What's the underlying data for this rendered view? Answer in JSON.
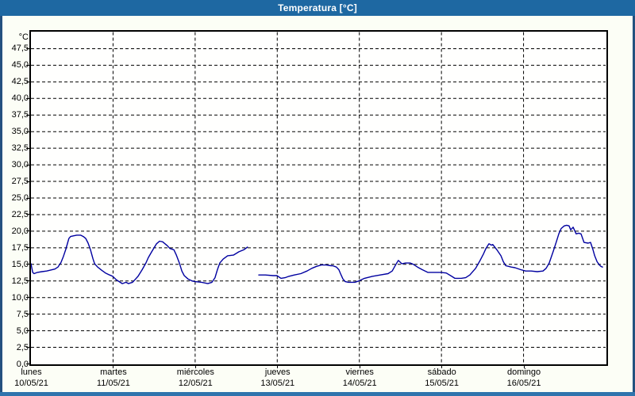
{
  "window": {
    "title": "Temperatura [°C]"
  },
  "colors": {
    "titlebar": "#1e68a2",
    "title_text": "#ffffff",
    "frame_side": "#24517f",
    "frame_bottom": "#2f74ad",
    "background": "#fcfef6",
    "plot_background": "#fffffe",
    "plot_border": "#000000",
    "gridline": "#000000",
    "axis_text": "#000000",
    "line": "#0000a0"
  },
  "chart_data": {
    "type": "line",
    "title": "Temperatura [°C]",
    "y_unit": "°C",
    "grid": "dashed",
    "legend": "none",
    "y_axis": {
      "min": 0,
      "max": 50,
      "step": 2.5,
      "tick_labels": [
        "0,0",
        "2,5",
        "5,0",
        "7,5",
        "10,0",
        "12,5",
        "15,0",
        "17,5",
        "20,0",
        "22,5",
        "25,0",
        "27,5",
        "30,0",
        "32,5",
        "35,0",
        "37,5",
        "40,0",
        "42,5",
        "45,0",
        "47,5"
      ]
    },
    "x_axis": {
      "total_hours": 168,
      "days": [
        {
          "name": "lunes",
          "date": "10/05/21"
        },
        {
          "name": "martes",
          "date": "11/05/21"
        },
        {
          "name": "miércoles",
          "date": "12/05/21"
        },
        {
          "name": "jueves",
          "date": "13/05/21"
        },
        {
          "name": "viernes",
          "date": "14/05/21"
        },
        {
          "name": "sábado",
          "date": "15/05/21"
        },
        {
          "name": "domingo",
          "date": "16/05/21"
        }
      ]
    },
    "series": [
      {
        "name": "Temperatura",
        "color": "#0000a0",
        "unit": "°C",
        "segments": [
          [
            [
              0,
              15.1
            ],
            [
              0.5,
              13.8
            ],
            [
              0.9,
              13.6
            ],
            [
              1.9,
              13.8
            ],
            [
              3.2,
              13.9
            ],
            [
              4.6,
              14.0
            ],
            [
              7.0,
              14.3
            ],
            [
              7.9,
              14.6
            ],
            [
              8.8,
              15.3
            ],
            [
              9.5,
              16.2
            ],
            [
              10.2,
              17.3
            ],
            [
              10.7,
              18.2
            ],
            [
              11.1,
              18.9
            ],
            [
              11.6,
              19.2
            ],
            [
              12.4,
              19.3
            ],
            [
              13.4,
              19.4
            ],
            [
              14.5,
              19.4
            ],
            [
              15.3,
              19.2
            ],
            [
              16.0,
              18.9
            ],
            [
              16.7,
              18.2
            ],
            [
              17.4,
              17.2
            ],
            [
              18.1,
              15.9
            ],
            [
              18.6,
              15.1
            ],
            [
              19.5,
              14.6
            ],
            [
              20.7,
              14.1
            ],
            [
              21.8,
              13.7
            ],
            [
              23.0,
              13.4
            ],
            [
              23.9,
              13.2
            ],
            [
              24.9,
              12.7
            ],
            [
              26.7,
              12.1
            ],
            [
              27.8,
              12.3
            ],
            [
              28.5,
              12.1
            ],
            [
              29.7,
              12.3
            ],
            [
              30.6,
              12.8
            ],
            [
              31.3,
              13.2
            ],
            [
              32.5,
              14.2
            ],
            [
              33.6,
              15.2
            ],
            [
              34.3,
              16.0
            ],
            [
              35.3,
              16.9
            ],
            [
              36.0,
              17.5
            ],
            [
              36.7,
              18.1
            ],
            [
              37.6,
              18.5
            ],
            [
              38.5,
              18.4
            ],
            [
              39.9,
              17.8
            ],
            [
              40.6,
              17.4
            ],
            [
              41.8,
              17.2
            ],
            [
              42.5,
              16.4
            ],
            [
              43.4,
              15.2
            ],
            [
              44.1,
              14.0
            ],
            [
              44.8,
              13.3
            ],
            [
              45.9,
              12.8
            ],
            [
              47.1,
              12.5
            ],
            [
              48.0,
              12.4
            ],
            [
              49.9,
              12.3
            ],
            [
              51.7,
              12.1
            ],
            [
              52.9,
              12.3
            ],
            [
              53.8,
              13.0
            ],
            [
              54.5,
              14.2
            ],
            [
              55.2,
              15.2
            ],
            [
              56.2,
              15.8
            ],
            [
              57.5,
              16.3
            ],
            [
              59.2,
              16.4
            ],
            [
              60.8,
              16.9
            ],
            [
              62.2,
              17.2
            ],
            [
              63.3,
              17.6
            ]
          ],
          [
            [
              66.6,
              13.4
            ],
            [
              68.5,
              13.4
            ],
            [
              70.8,
              13.3
            ],
            [
              71.9,
              13.3
            ],
            [
              73.1,
              12.9
            ],
            [
              74.3,
              13.0
            ],
            [
              75.4,
              13.2
            ],
            [
              77.0,
              13.4
            ],
            [
              78.9,
              13.6
            ],
            [
              80.7,
              14.0
            ],
            [
              82.1,
              14.4
            ],
            [
              83.5,
              14.7
            ],
            [
              84.9,
              14.9
            ],
            [
              86.3,
              14.9
            ],
            [
              87.7,
              14.8
            ],
            [
              88.2,
              14.8
            ],
            [
              89.3,
              14.6
            ],
            [
              90.0,
              14.2
            ],
            [
              90.5,
              13.6
            ],
            [
              91.2,
              12.8
            ],
            [
              91.9,
              12.4
            ],
            [
              92.8,
              12.3
            ],
            [
              94.7,
              12.3
            ],
            [
              95.8,
              12.5
            ],
            [
              97.5,
              12.9
            ],
            [
              99.8,
              13.2
            ],
            [
              102.1,
              13.4
            ],
            [
              104.4,
              13.6
            ],
            [
              105.6,
              14.0
            ],
            [
              106.7,
              15.0
            ],
            [
              107.4,
              15.6
            ],
            [
              108.4,
              15.1
            ],
            [
              109.5,
              15.2
            ],
            [
              110.9,
              15.2
            ],
            [
              111.8,
              15.0
            ],
            [
              113.0,
              14.6
            ],
            [
              114.4,
              14.2
            ],
            [
              116.0,
              13.8
            ],
            [
              117.9,
              13.8
            ],
            [
              119.7,
              13.8
            ],
            [
              121.4,
              13.7
            ],
            [
              123.0,
              13.2
            ],
            [
              123.9,
              12.9
            ],
            [
              125.8,
              12.9
            ],
            [
              127.1,
              13.0
            ],
            [
              128.3,
              13.4
            ],
            [
              130.0,
              14.4
            ],
            [
              131.1,
              15.4
            ],
            [
              132.3,
              16.6
            ],
            [
              133.0,
              17.4
            ],
            [
              133.9,
              18.1
            ],
            [
              134.6,
              17.9
            ],
            [
              135.0,
              18.0
            ],
            [
              136.2,
              17.2
            ],
            [
              137.4,
              16.3
            ],
            [
              138.1,
              15.4
            ],
            [
              138.8,
              14.8
            ],
            [
              140.4,
              14.6
            ],
            [
              141.5,
              14.5
            ],
            [
              143.2,
              14.2
            ],
            [
              144.6,
              14.0
            ],
            [
              146.2,
              14.0
            ],
            [
              148.0,
              13.9
            ],
            [
              149.7,
              14.0
            ],
            [
              150.6,
              14.4
            ],
            [
              151.5,
              15.2
            ],
            [
              152.7,
              17.0
            ],
            [
              153.6,
              18.4
            ],
            [
              154.3,
              19.6
            ],
            [
              155.0,
              20.4
            ],
            [
              155.9,
              20.8
            ],
            [
              156.6,
              20.9
            ],
            [
              157.3,
              20.8
            ],
            [
              157.8,
              20.2
            ],
            [
              158.5,
              20.6
            ],
            [
              159.4,
              19.6
            ],
            [
              160.1,
              19.7
            ],
            [
              160.8,
              19.6
            ],
            [
              161.7,
              18.3
            ],
            [
              162.9,
              18.2
            ],
            [
              163.6,
              18.3
            ],
            [
              164.3,
              17.2
            ],
            [
              164.8,
              16.3
            ],
            [
              165.5,
              15.4
            ],
            [
              166.2,
              14.9
            ],
            [
              166.6,
              14.7
            ],
            [
              167.1,
              14.6
            ]
          ]
        ]
      }
    ]
  }
}
